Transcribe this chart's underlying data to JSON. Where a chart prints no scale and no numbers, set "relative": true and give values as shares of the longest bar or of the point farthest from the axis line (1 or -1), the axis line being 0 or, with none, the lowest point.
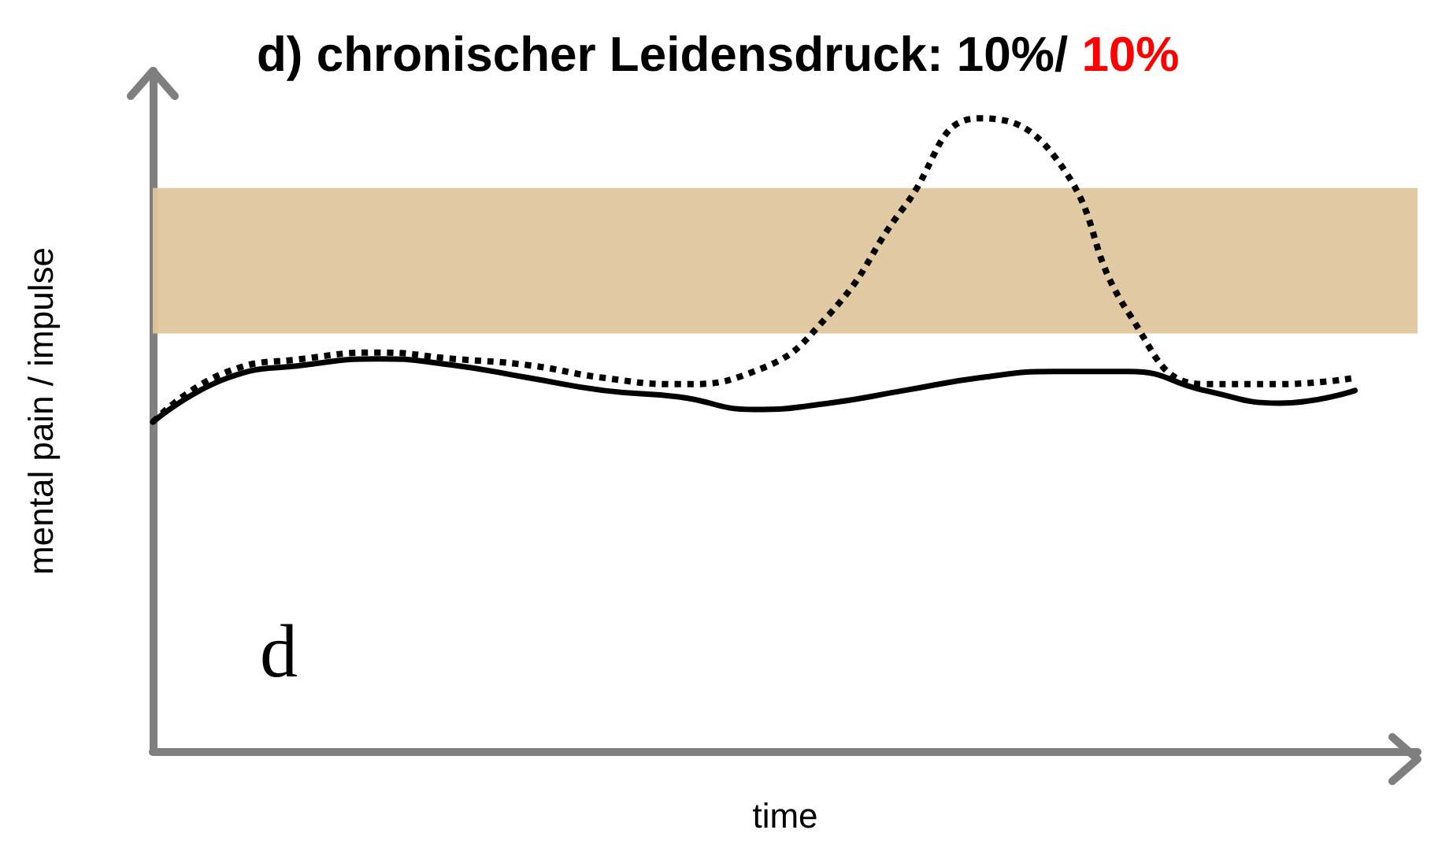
{
  "chart_data": {
    "type": "line",
    "title": "d) chronischer Leidensdruck: 10%/ 10%",
    "xlabel": "time",
    "ylabel": "mental pain / impulse",
    "relative": true,
    "grid": false,
    "marker": "none",
    "categories": [
      null,
      null,
      null,
      null,
      null,
      null,
      null,
      null,
      null,
      null,
      null,
      null,
      null,
      null,
      null,
      null,
      null
    ],
    "series": [
      {
        "color": "#000000",
        "line_style": "solid",
        "values": [
          0.52,
          0.59,
          0.61,
          0.62,
          0.61,
          0.59,
          0.57,
          0.56,
          0.54,
          0.55,
          0.57,
          0.59,
          0.6,
          0.6,
          0.57,
          0.55,
          0.57
        ]
      },
      {
        "color": "#000000",
        "line_style": "dotted",
        "values": [
          0.52,
          0.6,
          0.62,
          0.63,
          0.62,
          0.61,
          0.59,
          0.58,
          0.6,
          0.69,
          0.86,
          1.0,
          0.94,
          0.69,
          0.58,
          0.58,
          0.59
        ]
      }
    ],
    "bands": [
      {
        "axis": "y",
        "from": 0.66,
        "to": 0.89,
        "color": "#dfc69e"
      }
    ],
    "annotations": [
      "d"
    ]
  }
}
